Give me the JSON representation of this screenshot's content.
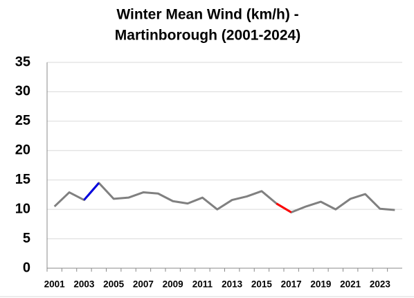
{
  "chart_data": {
    "type": "line",
    "title": [
      "Winter Mean Wind (km/h) -",
      "Martinborough (2001-2024)"
    ],
    "categories": [
      "2001",
      null,
      "2003",
      null,
      "2005",
      null,
      "2007",
      null,
      "2009",
      null,
      "2011",
      null,
      "2013",
      null,
      "2015",
      null,
      "2017",
      null,
      "2019",
      null,
      "2021",
      null,
      "2023",
      null
    ],
    "series": [
      {
        "color": "#808080",
        "values": [
          10.5,
          12.9,
          11.6,
          14.5,
          11.8,
          12.0,
          12.9,
          12.7,
          11.4,
          11.0,
          12.0,
          10.0,
          11.6,
          12.2,
          13.1,
          11.0,
          9.5,
          10.5,
          11.3,
          10.0,
          11.8,
          12.6,
          10.1,
          9.9
        ]
      },
      {
        "color": "#0000e0",
        "values": [
          null,
          null,
          11.6,
          14.5,
          null,
          null,
          null,
          null,
          null,
          null,
          null,
          null,
          null,
          null,
          null,
          null,
          null,
          null,
          null,
          null,
          null,
          null,
          null,
          null
        ]
      },
      {
        "color": "#ff0000",
        "values": [
          null,
          null,
          null,
          null,
          null,
          null,
          null,
          null,
          null,
          null,
          null,
          null,
          null,
          null,
          null,
          11.0,
          9.5,
          null,
          null,
          null,
          null,
          null,
          null,
          null
        ]
      }
    ],
    "ylim": [
      0,
      35
    ],
    "yticks": [
      0,
      5,
      10,
      15,
      20,
      25,
      30,
      35
    ],
    "grid": true
  }
}
